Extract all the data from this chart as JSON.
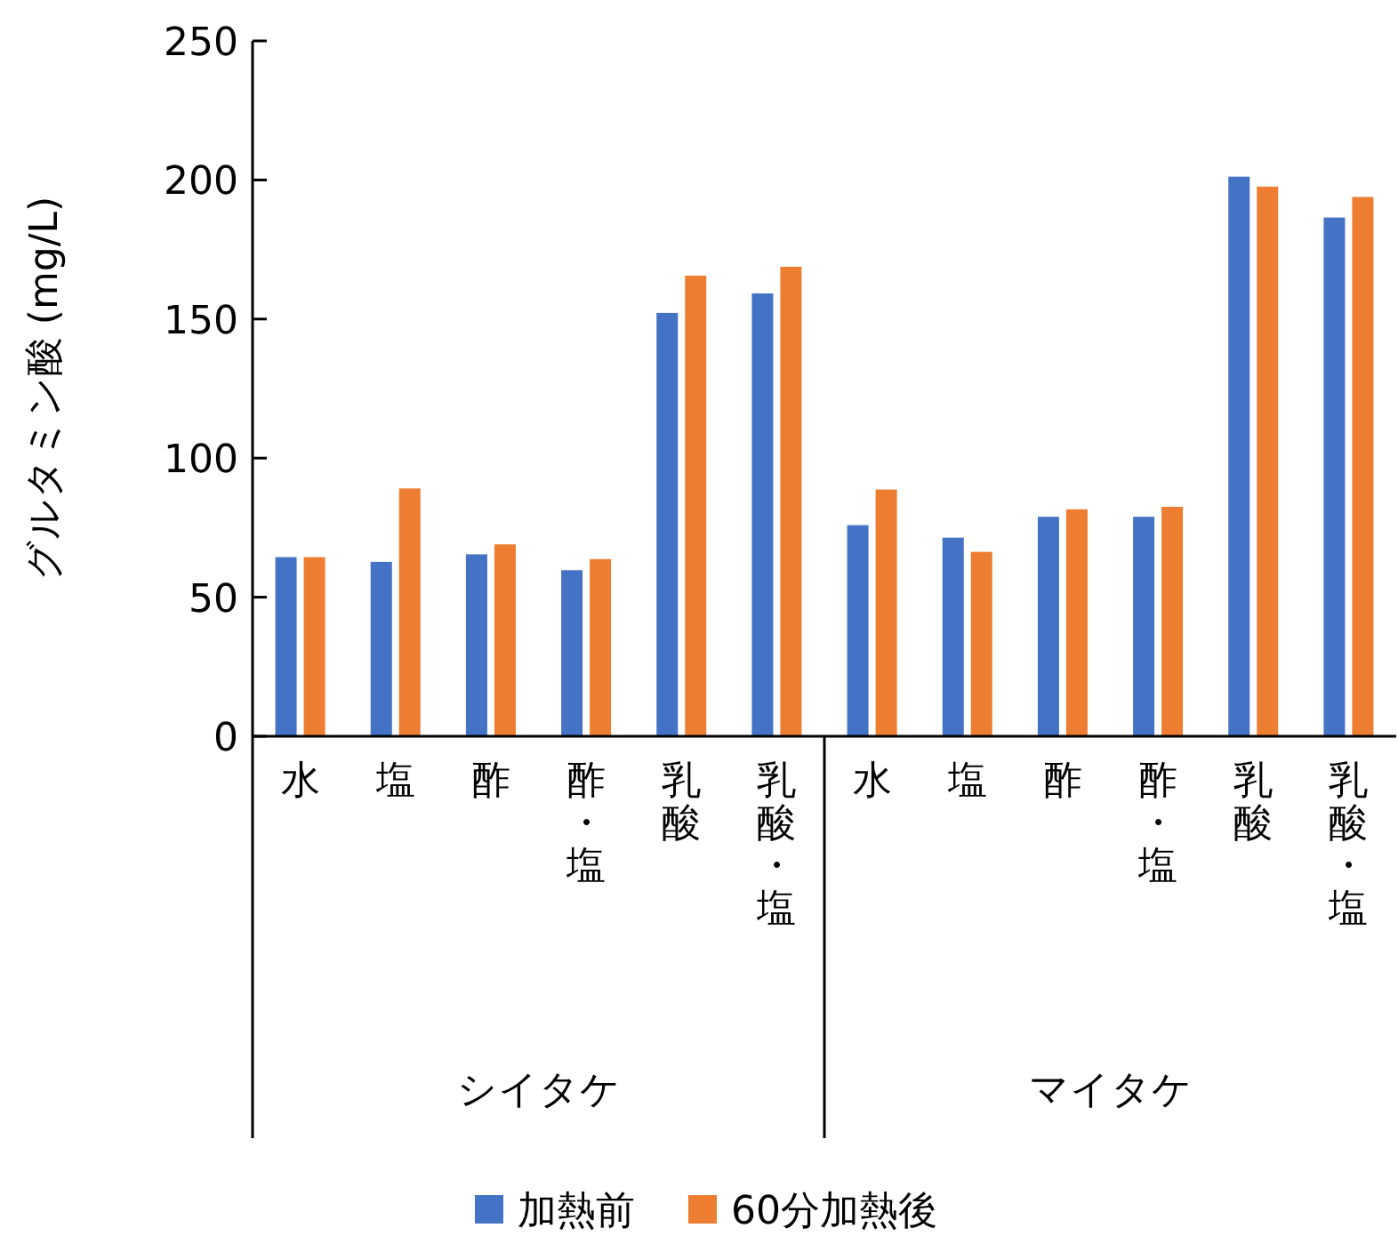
{
  "chart_data": {
    "type": "bar",
    "ylabel": "グルタミン酸 (mg/L)",
    "categories": [
      "水",
      "塩",
      "酢",
      "酢・塩",
      "乳酸",
      "乳酸・塩",
      "水",
      "塩",
      "酢",
      "酢・塩",
      "乳酸",
      "乳酸・塩"
    ],
    "series": [
      {
        "name": "加熱前",
        "color": "#4472c4",
        "values": [
          64.4,
          62.7,
          65.4,
          59.7,
          152.2,
          159.2,
          75.9,
          71.4,
          78.9,
          78.9,
          201.2,
          186.5
        ]
      },
      {
        "name": "60分加熱後",
        "color": "#ed7d31",
        "values": [
          64.4,
          89.1,
          69,
          63.7,
          165.6,
          168.8,
          88.7,
          66.3,
          81.6,
          82.5,
          197.6,
          193.9
        ]
      }
    ],
    "annotations": [
      "シイタケ",
      "マイタケ"
    ],
    "ylim": [
      0,
      250
    ],
    "yticks": [
      0,
      50,
      100,
      150,
      200,
      250
    ],
    "grid": false,
    "legend": "bottom"
  }
}
